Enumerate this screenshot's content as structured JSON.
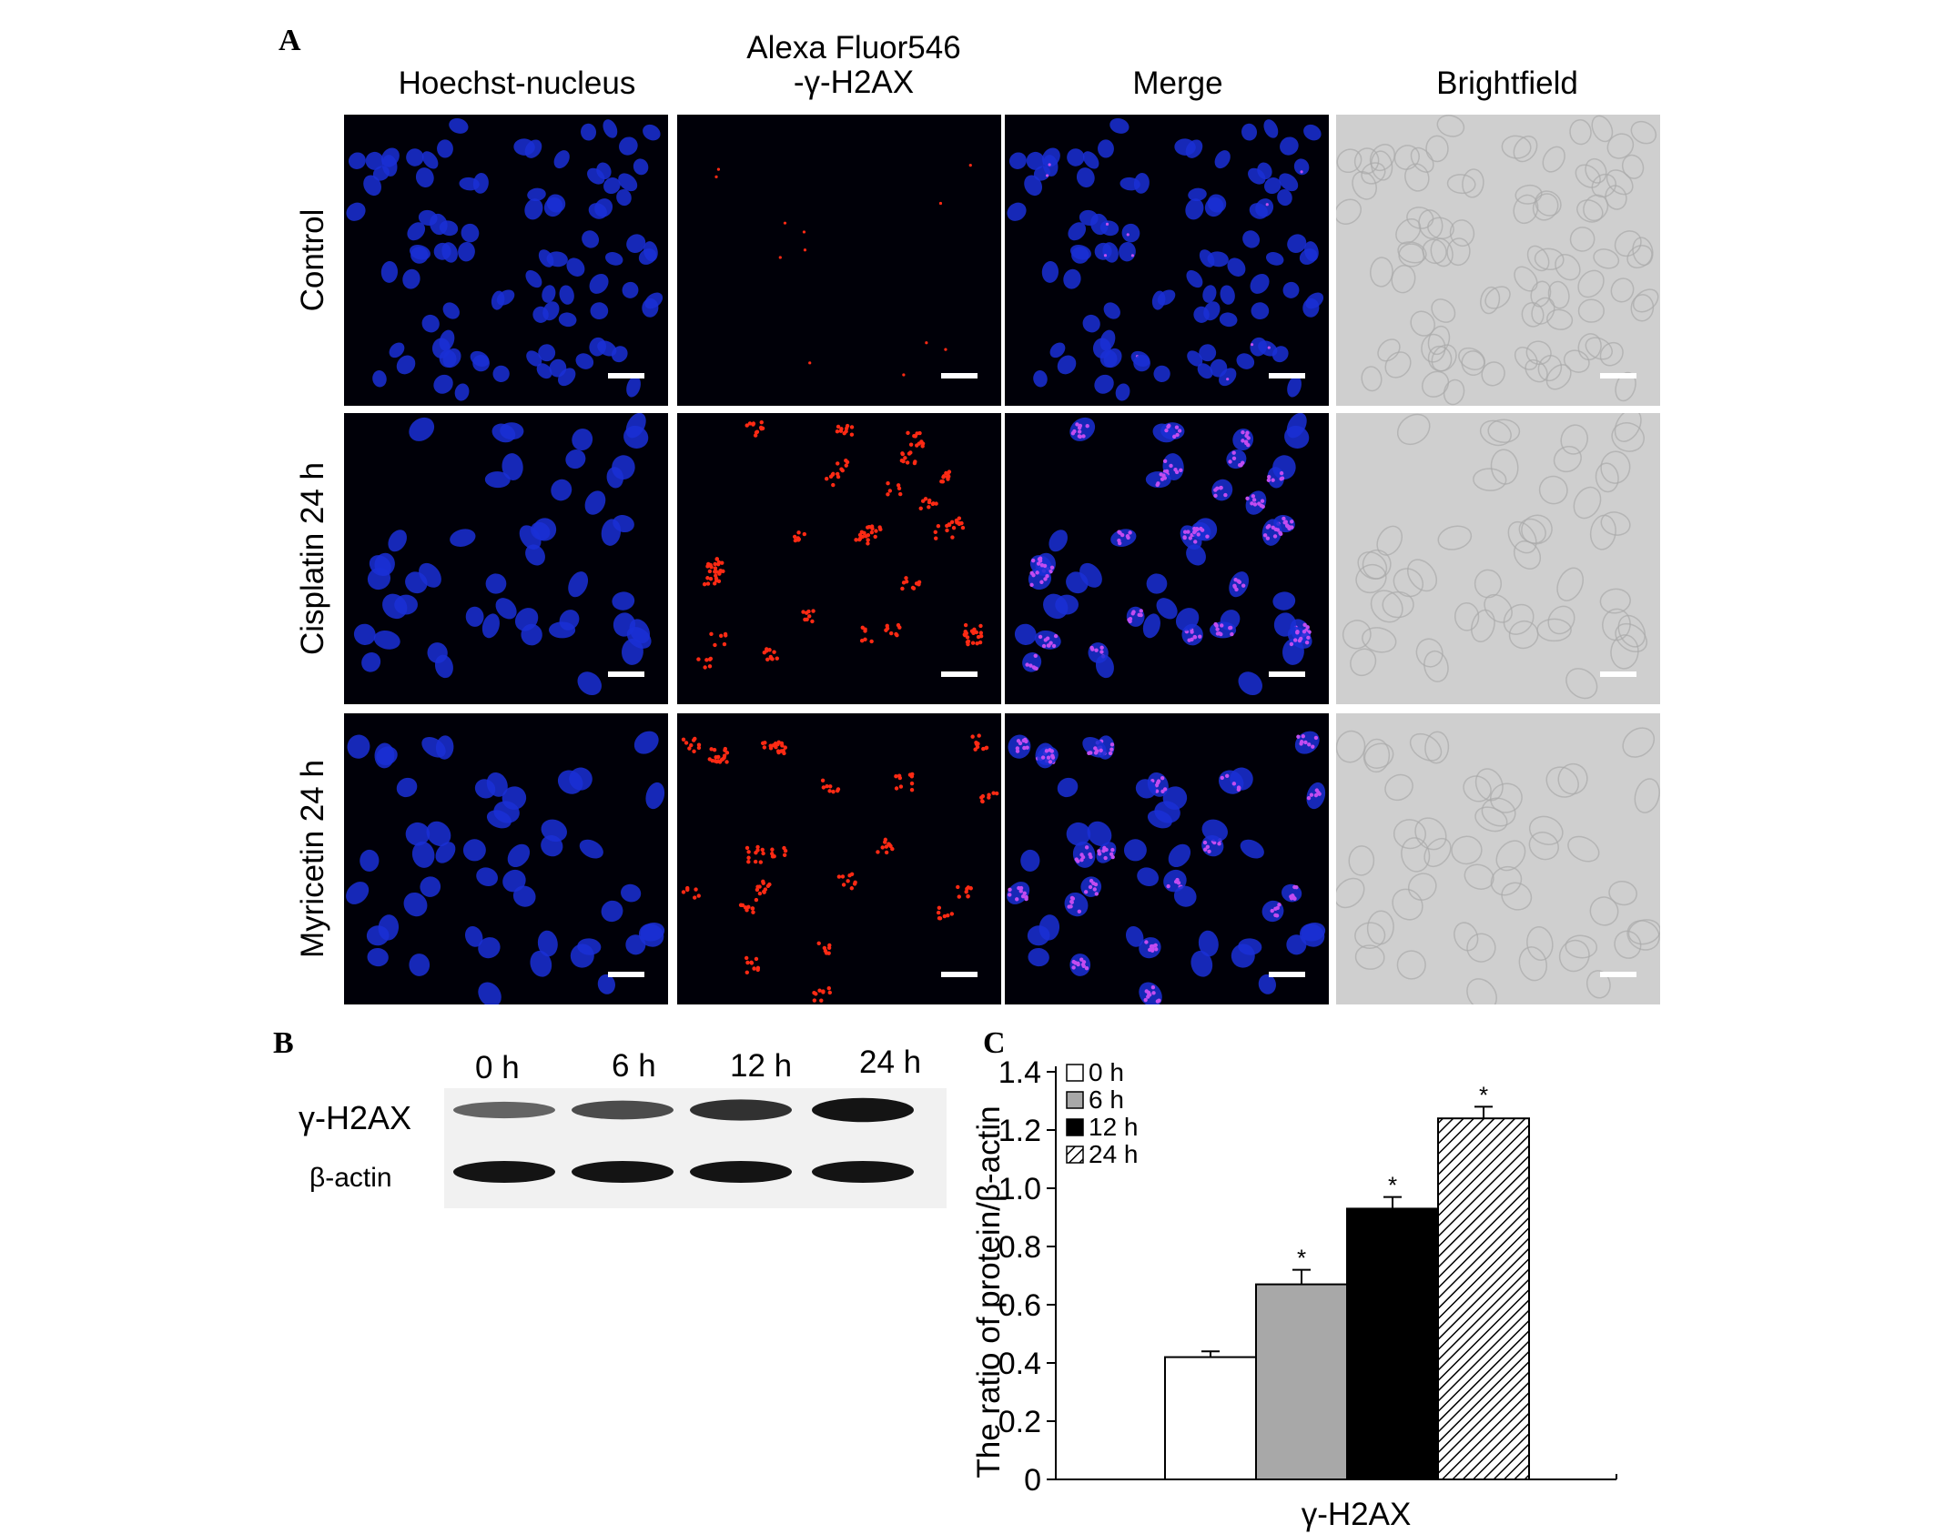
{
  "figure": {
    "panels": {
      "a": "A",
      "b": "B",
      "c": "C"
    },
    "panel_a": {
      "columns": [
        {
          "line1": "Hoechst-nucleus"
        },
        {
          "line1": "Alexa Fluor546",
          "line2": "-γ-H2AX"
        },
        {
          "line1": "Merge"
        },
        {
          "line1": "Brightfield"
        }
      ],
      "rows": [
        {
          "label": "Control"
        },
        {
          "label": "Cisplatin  24 h"
        },
        {
          "label": "Myricetin  24 h"
        }
      ],
      "image_types": [
        "hoechst",
        "alexa",
        "merge",
        "brightfield"
      ],
      "colors": {
        "nucleus_blue": "#1a2fd6",
        "foci_red": "#ff2a14",
        "merge_pink": "#c24cf0",
        "fluor_bg": "#000008",
        "brightfield_bg": "#cfcfcf"
      }
    },
    "panel_b": {
      "lanes": [
        "0 h",
        "6 h",
        "12 h",
        "24 h"
      ],
      "bands": [
        "γ-H2AX",
        "β-actin"
      ],
      "relative_intensity": {
        "γ-H2AX": [
          0.42,
          0.67,
          0.93,
          1.24
        ],
        "β-actin": [
          1.0,
          1.0,
          1.0,
          1.0
        ]
      }
    }
  },
  "chart_data": {
    "type": "bar",
    "x": [
      "γ-H2AX"
    ],
    "xlabel": "γ-H2AX",
    "ylabel": "The ratio of protein/β-actin",
    "ylim": [
      0,
      1.4
    ],
    "yticks": [
      "0",
      "0.2",
      "0.4",
      "0.6",
      "0.8",
      "1.0",
      "1.2",
      "1.4"
    ],
    "series": [
      {
        "name": "0 h",
        "values": [
          0.42
        ],
        "error": [
          0.02
        ],
        "significant": false,
        "fill": "white"
      },
      {
        "name": "6 h",
        "values": [
          0.67
        ],
        "error": [
          0.05
        ],
        "significant": true,
        "fill": "gray"
      },
      {
        "name": "12 h",
        "values": [
          0.93
        ],
        "error": [
          0.04
        ],
        "significant": true,
        "fill": "black"
      },
      {
        "name": "24 h",
        "values": [
          1.24
        ],
        "error": [
          0.04
        ],
        "significant": true,
        "fill": "hatched"
      }
    ],
    "significance_marker": "*",
    "legend_position": "top-left",
    "grid": false
  }
}
